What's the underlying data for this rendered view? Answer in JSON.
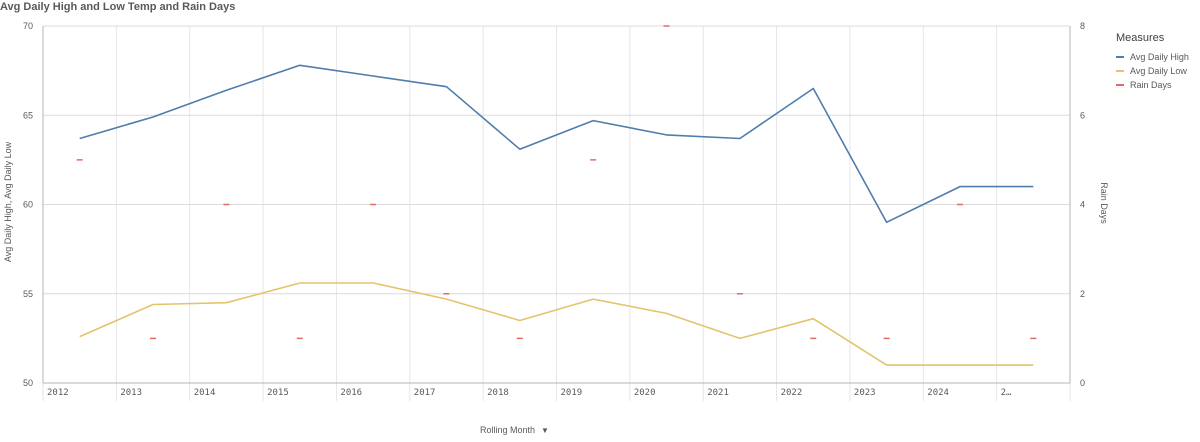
{
  "chart_data": {
    "type": "line",
    "title": "Avg Daily High and Low Temp and Rain Days",
    "xlabel": "Rolling Month",
    "ylabel": "Avg Daily High, Avg Daily Low",
    "y2label": "Rain Days",
    "categories": [
      "2012",
      "2013",
      "2014",
      "2015",
      "2016",
      "2017",
      "2018",
      "2019",
      "2020",
      "2021",
      "2022",
      "2023",
      "2024",
      "2…"
    ],
    "yticks": [
      "50",
      "55",
      "60",
      "65",
      "70"
    ],
    "y2ticks": [
      "0",
      "2",
      "4",
      "6",
      "8"
    ],
    "ylim": [
      50,
      70
    ],
    "y2lim": [
      0,
      8
    ],
    "grid": true,
    "legend_position": "right",
    "legend_title": "Measures",
    "series": [
      {
        "name": "Avg Daily High",
        "axis": "left",
        "color": "#4f7dac",
        "values": [
          63.7,
          64.9,
          66.4,
          67.8,
          67.2,
          66.6,
          63.1,
          64.7,
          63.9,
          63.7,
          66.5,
          59.0,
          61.0,
          61.0
        ]
      },
      {
        "name": "Avg Daily Low",
        "axis": "left",
        "color": "#e3c46c",
        "values": [
          52.6,
          54.4,
          54.5,
          55.6,
          55.6,
          54.7,
          53.5,
          54.7,
          53.9,
          52.5,
          53.6,
          51.0,
          51.0,
          51.0
        ]
      },
      {
        "name": "Rain Days",
        "axis": "right",
        "color": "#e06b6b",
        "values": [
          5,
          1,
          4,
          1,
          4,
          2,
          1,
          5,
          8,
          2,
          1,
          1,
          4,
          1
        ]
      }
    ]
  }
}
